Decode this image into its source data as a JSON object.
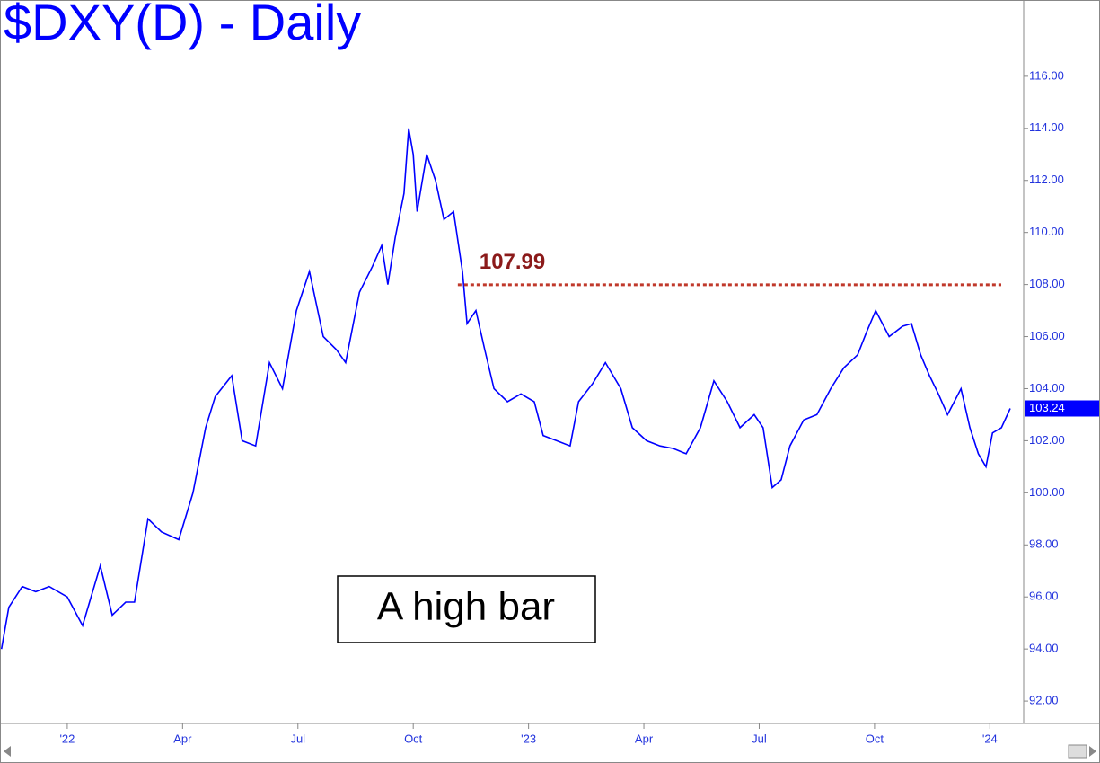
{
  "chart_data": {
    "type": "line",
    "title": "$DXY(D) - Daily",
    "annotation": "A high bar",
    "hline": 107.99,
    "hline_color": "#c0392b",
    "x": [
      -1.71,
      -1.52,
      -1.17,
      -0.82,
      -0.47,
      0,
      0.4,
      0.86,
      1.17,
      1.52,
      1.75,
      2.1,
      2.45,
      2.9,
      3.27,
      3.6,
      3.85,
      4.28,
      4.55,
      4.9,
      5.26,
      5.6,
      5.96,
      6.3,
      6.66,
      7.0,
      7.24,
      7.6,
      7.94,
      8.18,
      8.34,
      8.53,
      8.76,
      8.88,
      9.0,
      9.1,
      9.35,
      9.58,
      9.8,
      10.05,
      10.28,
      10.4,
      10.63,
      10.86,
      11.1,
      11.45,
      11.8,
      12.15,
      12.38,
      12.73,
      13.08,
      13.3,
      13.67,
      14.0,
      14.4,
      14.7,
      15.07,
      15.42,
      15.77,
      16.1,
      16.47,
      16.82,
      17.17,
      17.5,
      17.87,
      18.1,
      18.34,
      18.57,
      18.8,
      19.16,
      19.5,
      19.86,
      20.2,
      20.56,
      20.8,
      21.03,
      21.38,
      21.73,
      21.96,
      22.2,
      22.43,
      22.66,
      22.9,
      23.25,
      23.48,
      23.7,
      23.9,
      24.07,
      24.3,
      24.53
    ],
    "series": [
      {
        "name": "$DXY",
        "color": "#0000ff",
        "values": [
          94.0,
          95.6,
          96.4,
          96.2,
          96.4,
          96.0,
          94.9,
          97.2,
          95.3,
          95.8,
          95.8,
          99.0,
          98.5,
          98.2,
          100.0,
          102.5,
          103.7,
          104.5,
          102.0,
          101.8,
          105.0,
          104.0,
          107.0,
          108.5,
          106.0,
          105.5,
          105.0,
          107.7,
          108.7,
          109.5,
          108.0,
          109.8,
          111.5,
          114.0,
          113.0,
          110.8,
          113.0,
          112.0,
          110.5,
          110.8,
          108.5,
          106.5,
          107.0,
          105.5,
          104.0,
          103.5,
          103.8,
          103.5,
          102.2,
          102.0,
          101.8,
          103.5,
          104.2,
          105.0,
          104.0,
          102.5,
          102.0,
          101.8,
          101.7,
          101.5,
          102.5,
          104.3,
          103.5,
          102.5,
          103.0,
          102.5,
          100.2,
          100.5,
          101.8,
          102.8,
          103.0,
          104.0,
          104.8,
          105.3,
          106.2,
          107.0,
          106.0,
          106.4,
          106.5,
          105.3,
          104.5,
          103.8,
          103.0,
          104.0,
          102.5,
          101.5,
          101.0,
          102.3,
          102.5,
          103.24
        ]
      }
    ],
    "xlim": [
      -1.75,
      24.88
    ],
    "ylim": [
      91.14,
      118.93
    ],
    "xticks": [
      {
        "value": 0,
        "label": "'22"
      },
      {
        "value": 3,
        "label": "Apr"
      },
      {
        "value": 6,
        "label": "Jul"
      },
      {
        "value": 9,
        "label": "Oct"
      },
      {
        "value": 12,
        "label": "'23"
      },
      {
        "value": 15,
        "label": "Apr"
      },
      {
        "value": 18,
        "label": "Jul"
      },
      {
        "value": 21,
        "label": "Oct"
      },
      {
        "value": 24,
        "label": "'24"
      }
    ],
    "yticks": [
      {
        "value": 92,
        "label": "92.00"
      },
      {
        "value": 94,
        "label": "94.00"
      },
      {
        "value": 96,
        "label": "96.00"
      },
      {
        "value": 98,
        "label": "98.00"
      },
      {
        "value": 100,
        "label": "100.00"
      },
      {
        "value": 102,
        "label": "102.00"
      },
      {
        "value": 104,
        "label": "104.00"
      },
      {
        "value": 106,
        "label": "106.00"
      },
      {
        "value": 108,
        "label": "108.00"
      },
      {
        "value": 110,
        "label": "110.00"
      },
      {
        "value": 112,
        "label": "112.00"
      },
      {
        "value": 114,
        "label": "114.00"
      },
      {
        "value": 116,
        "label": "116.00"
      }
    ],
    "hline_start": 10.16
  }
}
